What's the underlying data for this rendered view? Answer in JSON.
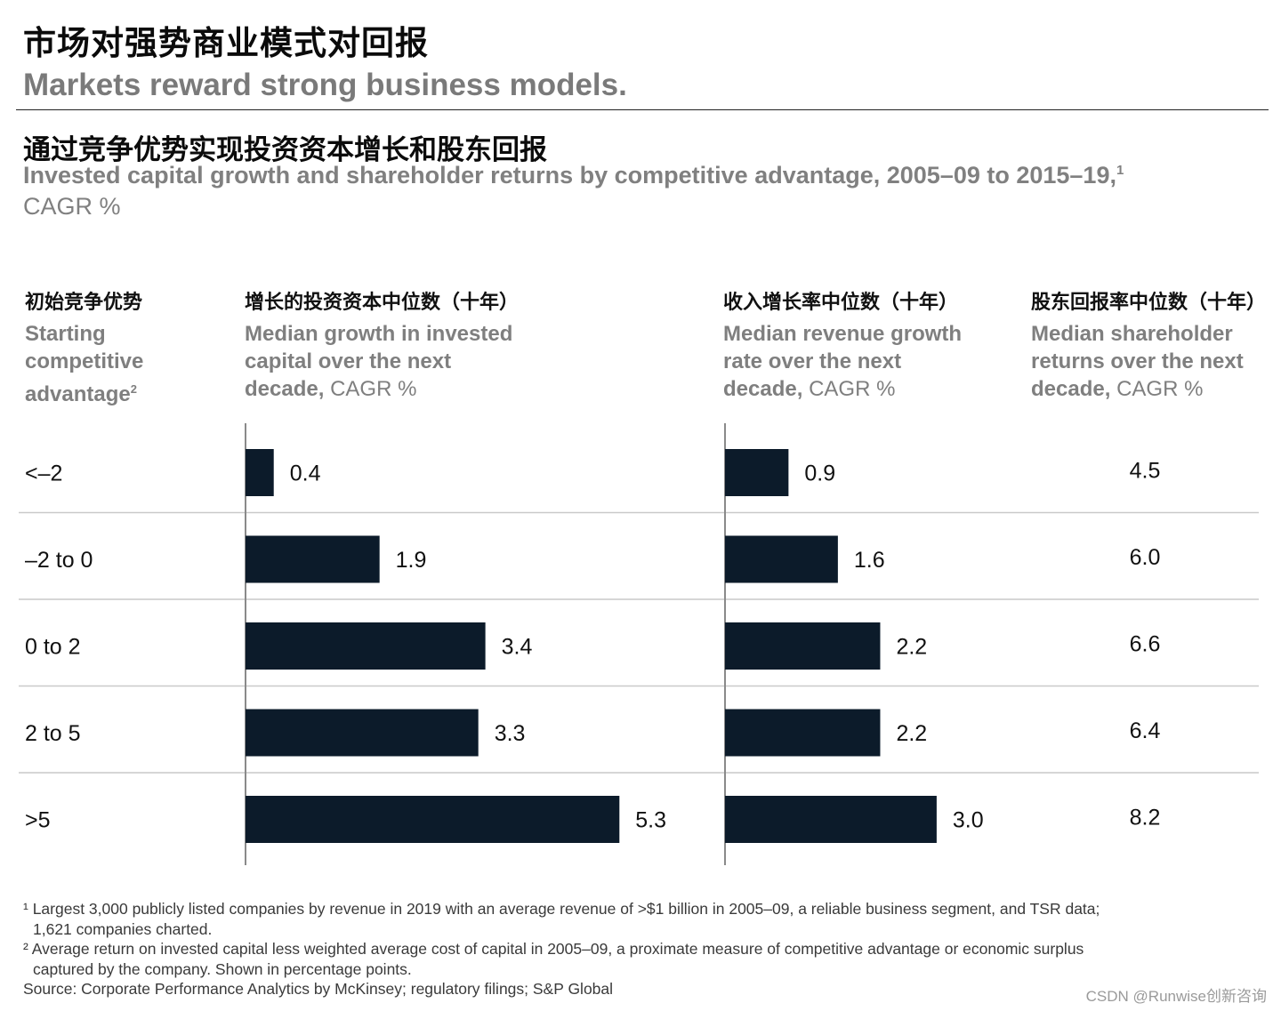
{
  "header": {
    "title_cn": "市场对强势商业模式对回报",
    "title_en": "Markets reward strong business models.",
    "subtitle_cn": "通过竞争优势实现投资资本增长和股东回报",
    "subtitle_en": "Invested capital growth and shareholder returns by competitive advantage, 2005–09 to 2015–19,",
    "subtitle_sup": "1",
    "unit": "CAGR %"
  },
  "columns": {
    "advantage": {
      "cn": "初始竞争优势",
      "en": "Starting competitive advantage",
      "sup": "2"
    },
    "capital": {
      "cn": "增长的投资资本中位数（十年）",
      "en": "Median growth in invested capital over the next decade,",
      "unit": "CAGR %"
    },
    "revenue": {
      "cn": "收入增长率中位数（十年）",
      "en": "Median revenue growth rate over the next decade,",
      "unit": "CAGR %"
    },
    "tsr": {
      "cn": "股东回报率中位数（十年）",
      "en": "Median shareholder returns over the next decade,",
      "unit": "CAGR %"
    }
  },
  "chart_data": {
    "type": "bar",
    "orientation": "horizontal",
    "categories": [
      "<–2",
      "–2 to 0",
      "0 to 2",
      "2 to 5",
      ">5"
    ],
    "series": [
      {
        "name": "Median growth in invested capital over the next decade, CAGR %",
        "values": [
          0.4,
          1.9,
          3.4,
          3.3,
          5.3
        ]
      },
      {
        "name": "Median revenue growth rate over the next decade, CAGR %",
        "values": [
          0.9,
          1.6,
          2.2,
          2.2,
          3.0
        ]
      }
    ],
    "table_column": {
      "name": "Median shareholder returns over the next decade, CAGR %",
      "values": [
        "4.5",
        "6.0",
        "6.6",
        "6.4",
        "8.2"
      ]
    },
    "bar_color": "#0c1b2a",
    "divider_color": "#c9c9c9",
    "axis_color": "#8a8a8a"
  },
  "footnotes": {
    "note1_line1": "¹ Largest 3,000 publicly listed companies by revenue in 2019 with an average revenue of >$1 billion in 2005–09, a reliable business segment, and TSR data;",
    "note1_line2": "1,621 companies charted.",
    "note2_line1": "² Average return on invested capital less weighted average cost of capital in 2005–09, a proximate measure of competitive advantage or economic surplus",
    "note2_line2": "captured by the company. Shown in percentage points.",
    "source": "Source: Corporate Performance Analytics by McKinsey; regulatory filings; S&P Global"
  },
  "watermark": "CSDN @Runwise创新咨询"
}
